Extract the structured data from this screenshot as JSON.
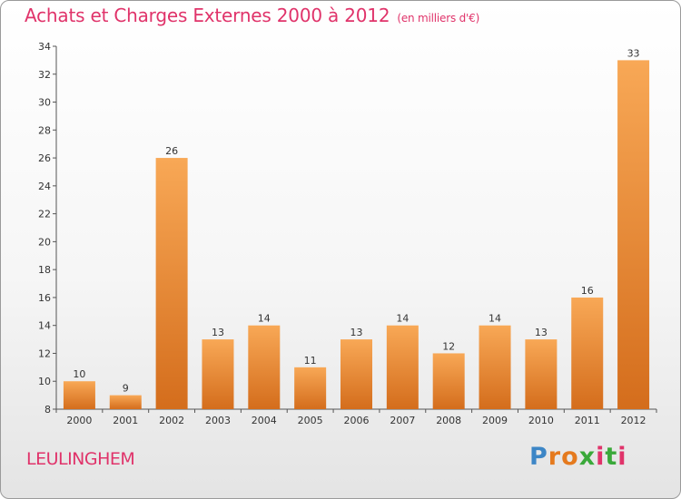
{
  "header": {
    "title": "Achats et Charges Externes 2000 à 2012",
    "subtitle": "(en milliers d'€)"
  },
  "footer": {
    "place": "LEULINGHEM",
    "logo_letters": [
      "P",
      "r",
      "o",
      "x",
      "i",
      "t",
      "i"
    ]
  },
  "colors": {
    "accent": "#e0336a",
    "bar_light": "#f7a552",
    "bar_dark": "#d8701e"
  },
  "chart_data": {
    "type": "bar",
    "title": "Achats et Charges Externes 2000 à 2012",
    "subtitle": "(en milliers d'€)",
    "categories": [
      "2000",
      "2001",
      "2002",
      "2003",
      "2004",
      "2005",
      "2006",
      "2007",
      "2008",
      "2009",
      "2010",
      "2011",
      "2012"
    ],
    "values": [
      10,
      9,
      26,
      13,
      14,
      11,
      13,
      14,
      12,
      14,
      13,
      16,
      33
    ],
    "ylim": [
      8,
      34
    ],
    "yticks": [
      8,
      10,
      12,
      14,
      16,
      18,
      20,
      22,
      24,
      26,
      28,
      30,
      32,
      34
    ],
    "grid": false,
    "data_labels": true
  }
}
